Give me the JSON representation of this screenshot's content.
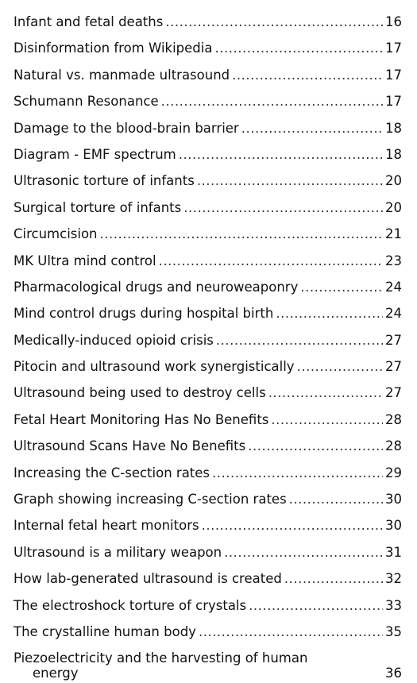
{
  "toc": {
    "entries": [
      {
        "title": "Infant and fetal deaths",
        "page": "16"
      },
      {
        "title": "Disinformation from Wikipedia",
        "page": "17"
      },
      {
        "title": "Natural vs. manmade ultrasound",
        "page": "17"
      },
      {
        "title": "Schumann Resonance",
        "page": "17"
      },
      {
        "title": "Damage to the blood-brain barrier",
        "page": "18"
      },
      {
        "title": "Diagram - EMF spectrum",
        "page": "18"
      },
      {
        "title": "Ultrasonic torture of infants",
        "page": "20"
      },
      {
        "title": "Surgical torture of infants",
        "page": "20"
      },
      {
        "title": "Circumcision",
        "page": "21"
      },
      {
        "title": "MK Ultra mind control",
        "page": "23"
      },
      {
        "title": "Pharmacological drugs and neuroweaponry",
        "page": "24"
      },
      {
        "title": "Mind control drugs during hospital birth",
        "page": "24"
      },
      {
        "title": "Medically-induced opioid crisis",
        "page": "27"
      },
      {
        "title": "Pitocin and ultrasound work synergistically",
        "page": "27"
      },
      {
        "title": "Ultrasound being used to destroy cells",
        "page": "27"
      },
      {
        "title": "Fetal Heart Monitoring Has No Benefits",
        "page": "28"
      },
      {
        "title": "Ultrasound Scans Have No Benefits",
        "page": "28"
      },
      {
        "title": "Increasing the C-section rates",
        "page": "29"
      },
      {
        "title": "Graph showing increasing C-section rates",
        "page": "30"
      },
      {
        "title": "Internal fetal heart monitors",
        "page": "30"
      },
      {
        "title": "Ultrasound is a military weapon",
        "page": "31"
      },
      {
        "title": "How lab-generated ultrasound is created",
        "page": "32"
      },
      {
        "title": "The electroshock torture of crystals",
        "page": "33"
      },
      {
        "title": "The crystalline human body",
        "page": "35"
      }
    ],
    "last_entry": {
      "title_line1": "Piezoelectricity and the harvesting of human",
      "title_line2": "energy",
      "page": "36"
    }
  }
}
